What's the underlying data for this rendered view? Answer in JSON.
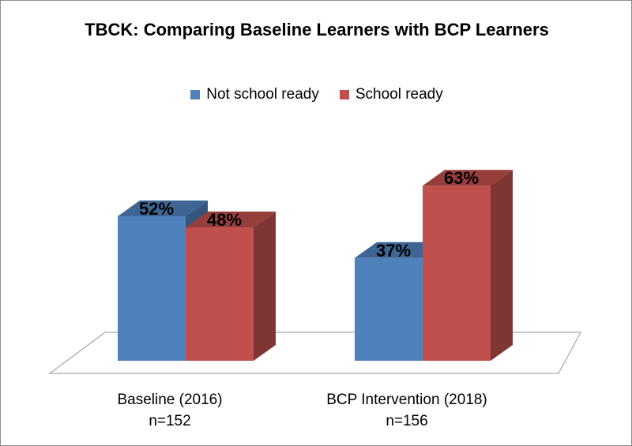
{
  "chart_data": {
    "type": "bar",
    "title": "TBCK: Comparing Baseline Learners with BCP Learners",
    "categories": [
      {
        "line1": "Baseline (2016)",
        "line2": "n=152"
      },
      {
        "line1": "BCP Intervention (2018)",
        "line2": "n=156"
      }
    ],
    "series": [
      {
        "name": "Not school ready",
        "color": "#4f81bd",
        "values": [
          52,
          37
        ],
        "labels": [
          "52%",
          "37%"
        ]
      },
      {
        "name": "School ready",
        "color": "#c0504d",
        "values": [
          48,
          63
        ],
        "labels": [
          "48%",
          "63%"
        ]
      }
    ],
    "ylim": [
      0,
      70
    ],
    "unit": "%",
    "legend": "top",
    "grid": false,
    "style": "3d-column"
  }
}
